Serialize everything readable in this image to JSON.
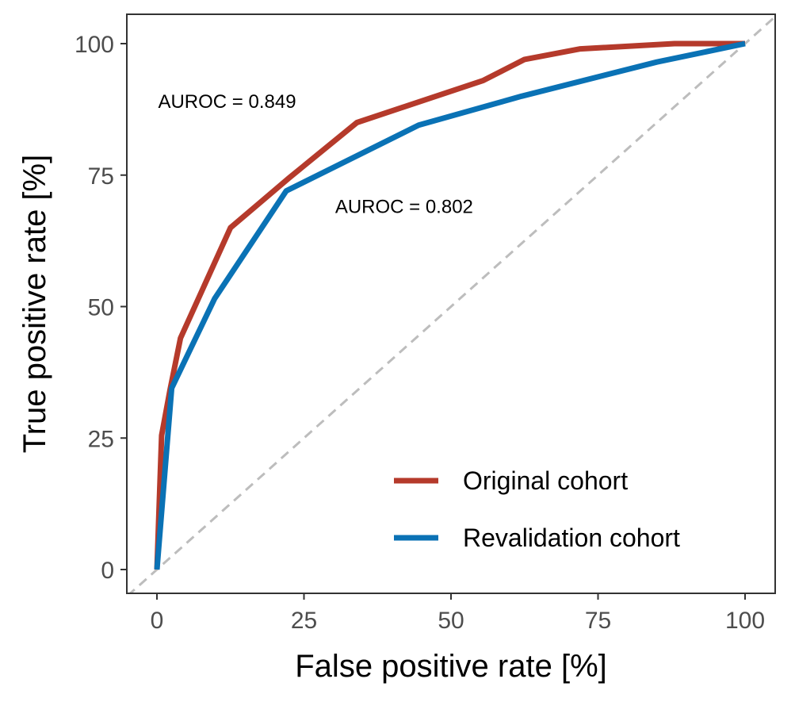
{
  "chart_data": {
    "type": "line",
    "xlabel": "False positive rate [%]",
    "ylabel": "True positive rate [%]",
    "xlim": [
      -5,
      105
    ],
    "ylim": [
      -4.5,
      100
    ],
    "x_ticks": [
      0,
      25,
      50,
      75,
      100
    ],
    "y_ticks": [
      0,
      25,
      50,
      75,
      100
    ],
    "grid": false,
    "legend_position": "bottom-right",
    "reference_line": {
      "style": "dashed",
      "color": "#bdbdbd",
      "points": [
        [
          -5,
          -5
        ],
        [
          105,
          105
        ]
      ]
    },
    "series": [
      {
        "name": "Original cohort",
        "color": "#b53a2b",
        "x": [
          0,
          0.8,
          2.2,
          4.0,
          12.5,
          22.5,
          34.0,
          55.5,
          62.5,
          72.0,
          88.0,
          100
        ],
        "y": [
          0,
          25.5,
          34.0,
          44.0,
          65.0,
          74.5,
          85.0,
          93.0,
          97.0,
          99.0,
          100,
          100
        ]
      },
      {
        "name": "Revalidation cohort",
        "color": "#0a72b5",
        "x": [
          0,
          2.5,
          9.8,
          22.0,
          44.5,
          62.0,
          85.0,
          100
        ],
        "y": [
          0,
          34.5,
          51.5,
          72.0,
          84.5,
          90.0,
          96.5,
          100
        ]
      }
    ],
    "annotations": [
      {
        "text": "AUROC = 0.849",
        "x": 0.2,
        "y": 89
      },
      {
        "text": "AUROC = 0.802",
        "x": 30.3,
        "y": 69
      }
    ]
  }
}
